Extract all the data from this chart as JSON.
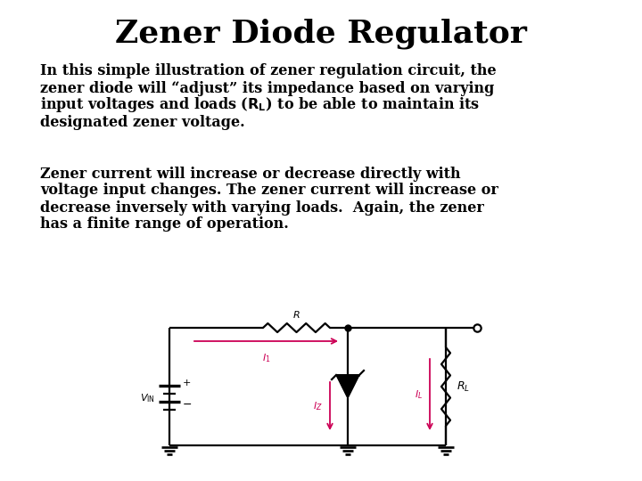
{
  "title": "Zener Diode Regulator",
  "title_fontsize": 26,
  "title_fontweight": "bold",
  "text_fontsize": 11.5,
  "text_fontweight": "bold",
  "bg_color": "#ffffff",
  "circuit_color": "#000000",
  "arrow_color": "#cc0055",
  "circuit_lw": 1.6,
  "para1_lines": [
    "In this simple illustration of zener regulation circuit, the",
    "zener diode will “adjust” its impedance based on varying",
    "input voltages and loads (R_L) to be able to maintain its",
    "designated zener voltage."
  ],
  "para2_lines": [
    "Zener current will increase or decrease directly with",
    "voltage input changes. The zener current will increase or",
    "decrease inversely with varying loads.  Again, the zener",
    "has a finite range of operation."
  ]
}
